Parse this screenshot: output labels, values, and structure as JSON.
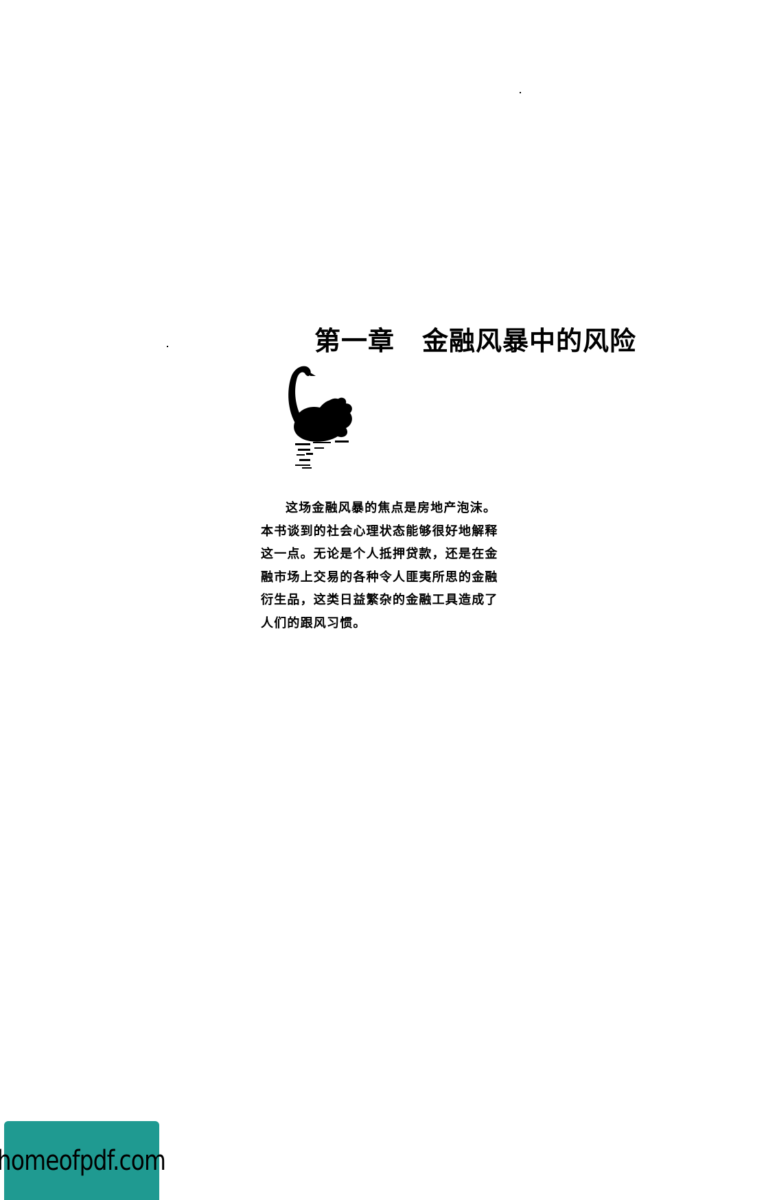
{
  "chapter": {
    "number": "第一章",
    "title": "金融风暴中的风险"
  },
  "intro_paragraph": "这场金融风暴的焦点是房地产泡沫。本书谈到的社会心理状态能够很好地解释这一点。无论是个人抵押贷款，还是在金融市场上交易的各种令人匪夷所思的金融衍生品，这类日益繁杂的金融工具造成了人们的跟风习惯。",
  "watermark": {
    "text": "homeofpdf.com",
    "background_color": "#1f9a91"
  },
  "illustration": {
    "icon": "black-swan-icon"
  }
}
